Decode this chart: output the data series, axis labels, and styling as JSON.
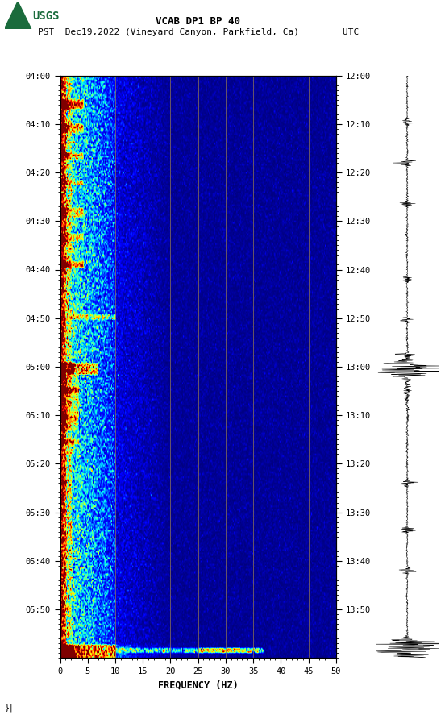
{
  "title_line1": "VCAB DP1 BP 40",
  "title_line2_pst": "PST",
  "title_line2_date": "Dec19,2022 (Vineyard Canyon, Parkfield, Ca)",
  "title_line2_utc": "UTC",
  "xlabel": "FREQUENCY (HZ)",
  "freq_min": 0,
  "freq_max": 50,
  "pst_tick_labels": [
    "04:00",
    "04:10",
    "04:20",
    "04:30",
    "04:40",
    "04:50",
    "05:00",
    "05:10",
    "05:20",
    "05:30",
    "05:40",
    "05:50"
  ],
  "utc_tick_labels": [
    "12:00",
    "12:10",
    "12:20",
    "12:30",
    "12:40",
    "12:50",
    "13:00",
    "13:10",
    "13:20",
    "13:30",
    "13:40",
    "13:50"
  ],
  "freq_ticks": [
    0,
    5,
    10,
    15,
    20,
    25,
    30,
    35,
    40,
    45,
    50
  ],
  "vertical_lines_freq": [
    10,
    15,
    20,
    25,
    30,
    35,
    40,
    45
  ],
  "vline_color": "#8B7355",
  "background_color": "#ffffff",
  "usgs_green": "#1a6b3c",
  "usgs_text": "USGS",
  "figsize": [
    5.52,
    8.92
  ],
  "dpi": 100
}
